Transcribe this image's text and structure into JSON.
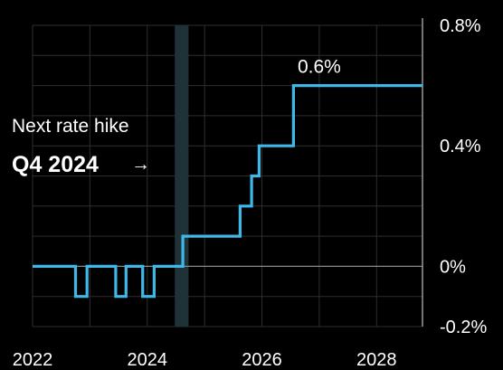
{
  "chart_data": {
    "type": "line",
    "title": "",
    "xlabel": "",
    "ylabel": "",
    "x_ticks": [
      "2022",
      "2024",
      "2026",
      "2028"
    ],
    "y_ticks": [
      "0.8%",
      "0.4%",
      "0%",
      "-0.2%"
    ],
    "xlim": [
      2022,
      2028.8
    ],
    "ylim": [
      -0.2,
      0.8
    ],
    "grid": true,
    "series": [
      {
        "x": [
          2022.0,
          2022.75,
          2022.75,
          2022.95,
          2022.95,
          2023.45,
          2023.45,
          2023.63,
          2023.63,
          2023.92,
          2023.92,
          2024.12,
          2024.12,
          2024.62,
          2024.62,
          2025.62,
          2025.62,
          2025.82,
          2025.82,
          2025.95,
          2025.95,
          2026.55,
          2026.55,
          2028.8
        ],
        "y": [
          0.0,
          0.0,
          -0.1,
          -0.1,
          0.0,
          0.0,
          -0.1,
          -0.1,
          0.0,
          0.0,
          -0.1,
          -0.1,
          0.0,
          0.0,
          0.1,
          0.1,
          0.2,
          0.2,
          0.3,
          0.3,
          0.4,
          0.4,
          0.6,
          0.6
        ]
      }
    ],
    "highlight_band": {
      "x_start": 2024.48,
      "x_end": 2024.72
    },
    "annotation": {
      "line1": "Next rate hike",
      "line2": "Q4 2024",
      "arrow": "→"
    },
    "end_label": "0.6%",
    "colors": {
      "line": "#3fb8e8",
      "band": "#1e3238",
      "grid": "#2e2e2e",
      "zero_line": "#8a8a8a",
      "axis": "#9a9a9a"
    }
  }
}
